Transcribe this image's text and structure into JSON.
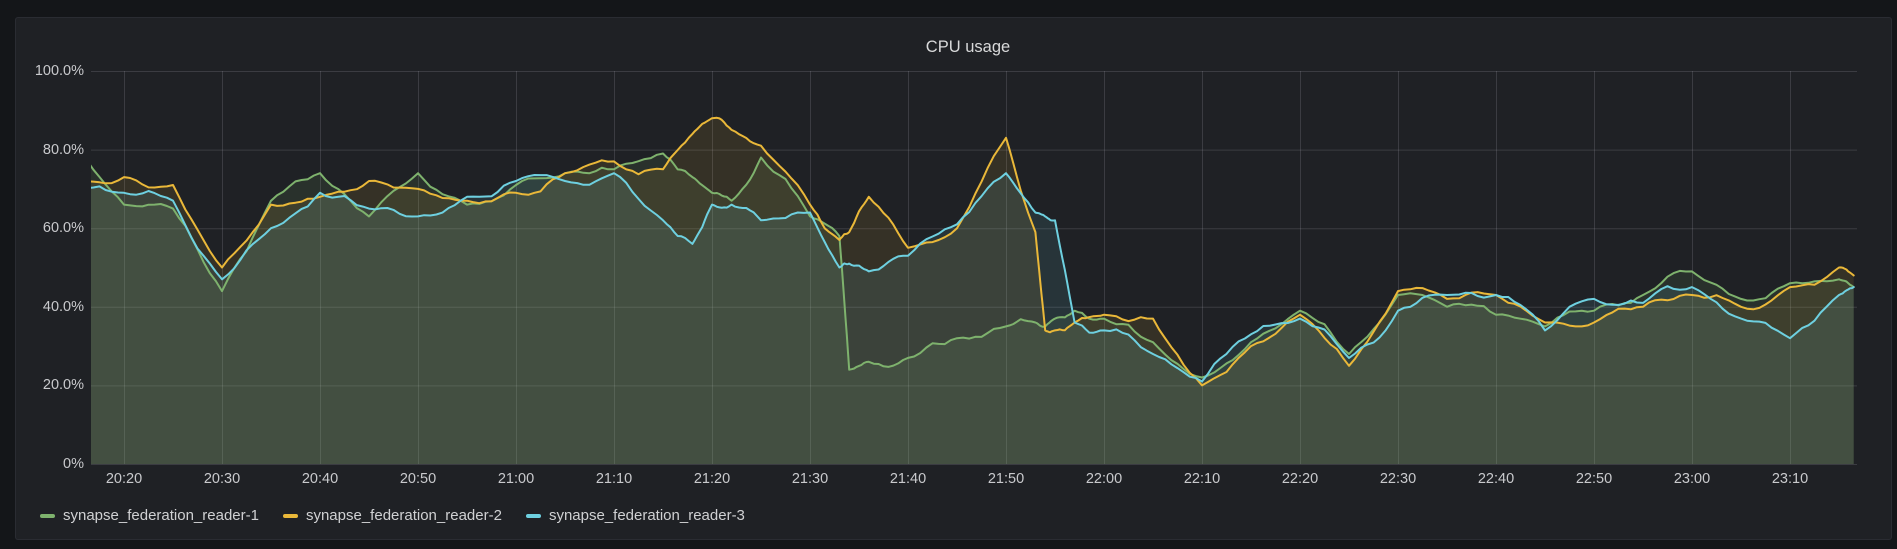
{
  "panel": {
    "title": "CPU usage"
  },
  "colors": {
    "page_bg": "#141619",
    "panel_bg": "#1f2125",
    "grid": "rgba(204,204,220,0.16)",
    "axis_text": "#c9cacd",
    "title_text": "#d8d9da"
  },
  "chart_data": {
    "type": "line",
    "title": "CPU usage",
    "unit": "percent",
    "ylim": [
      0,
      100
    ],
    "grid": true,
    "legend_position": "bottom-left",
    "area_fill_opacity": 0.11,
    "start_time": "20:15",
    "x_unit": "minutes_from_20:15",
    "y_ticks": [
      {
        "label": "100.0%",
        "value": 100
      },
      {
        "label": "80.0%",
        "value": 80
      },
      {
        "label": "60.0%",
        "value": 60
      },
      {
        "label": "40.0%",
        "value": 40
      },
      {
        "label": "20.0%",
        "value": 20
      },
      {
        "label": "0%",
        "value": 0
      }
    ],
    "x_ticks": [
      {
        "label": "20:20",
        "t": 5
      },
      {
        "label": "20:30",
        "t": 15
      },
      {
        "label": "20:40",
        "t": 25
      },
      {
        "label": "20:50",
        "t": 35
      },
      {
        "label": "21:00",
        "t": 45
      },
      {
        "label": "21:10",
        "t": 55
      },
      {
        "label": "21:20",
        "t": 65
      },
      {
        "label": "21:30",
        "t": 75
      },
      {
        "label": "21:40",
        "t": 85
      },
      {
        "label": "21:50",
        "t": 95
      },
      {
        "label": "22:00",
        "t": 105
      },
      {
        "label": "22:10",
        "t": 115
      },
      {
        "label": "22:20",
        "t": 125
      },
      {
        "label": "22:30",
        "t": 135
      },
      {
        "label": "22:40",
        "t": 145
      },
      {
        "label": "22:50",
        "t": 155
      },
      {
        "label": "23:00",
        "t": 165
      },
      {
        "label": "23:10",
        "t": 175
      }
    ],
    "x": [
      0,
      5,
      10,
      15,
      20,
      25,
      30,
      35,
      40,
      45,
      50,
      55,
      60,
      63,
      65,
      67,
      70,
      75,
      78,
      79,
      81,
      85,
      90,
      95,
      98,
      99,
      100,
      102,
      105,
      110,
      115,
      120,
      125,
      130,
      135,
      140,
      145,
      150,
      155,
      160,
      165,
      170,
      175,
      180,
      181.5
    ],
    "series": [
      {
        "name": "synapse_federation_reader-1",
        "color": "#7eb26d",
        "values": [
          81,
          66,
          65,
          44,
          67,
          74,
          63,
          74,
          66,
          71,
          74,
          75,
          79,
          73,
          69,
          67,
          78,
          63,
          58,
          24,
          26,
          27,
          32,
          35,
          36,
          35,
          37,
          39,
          37,
          31,
          22,
          31,
          39,
          28,
          43,
          40,
          38,
          35,
          39,
          43,
          49,
          42,
          46,
          47,
          45
        ]
      },
      {
        "name": "synapse_federation_reader-2",
        "color": "#eab839",
        "values": [
          73,
          73,
          71,
          50,
          66,
          68,
          72,
          70,
          67,
          69,
          74,
          77,
          75,
          84,
          88,
          85,
          81,
          66,
          57,
          59,
          68,
          55,
          60,
          83,
          59,
          34,
          34,
          36,
          38,
          37,
          20,
          30,
          38,
          25,
          44,
          42,
          43,
          36,
          36,
          40,
          43,
          40,
          45,
          50,
          48
        ]
      },
      {
        "name": "synapse_federation_reader-3",
        "color": "#6ed0e0",
        "values": [
          71,
          69,
          67,
          47,
          60,
          69,
          65,
          63,
          68,
          72,
          72,
          74,
          62,
          56,
          66,
          66,
          62,
          64,
          50,
          51,
          49,
          53,
          61,
          74,
          64,
          63,
          62,
          36,
          34,
          28,
          21,
          33,
          37,
          27,
          39,
          43,
          43,
          34,
          42,
          41,
          45,
          37,
          32,
          43,
          45
        ]
      }
    ]
  }
}
